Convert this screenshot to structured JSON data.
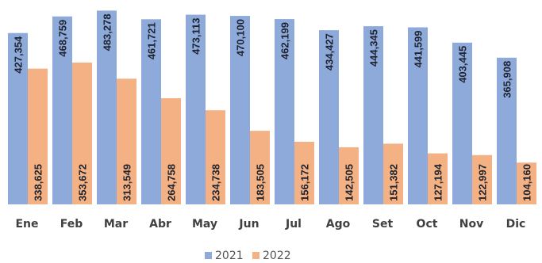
{
  "chart_data": {
    "type": "bar",
    "categories": [
      "Ene",
      "Feb",
      "Mar",
      "Abr",
      "May",
      "Jun",
      "Jul",
      "Ago",
      "Set",
      "Oct",
      "Nov",
      "Dic"
    ],
    "series": [
      {
        "name": "2021",
        "color": "#8eaadb",
        "values": [
          427354,
          468759,
          483278,
          461721,
          473113,
          470100,
          462199,
          434427,
          444345,
          441599,
          403445,
          365908
        ],
        "labels": [
          "427,354",
          "468,759",
          "483,278",
          "461,721",
          "473,113",
          "470,100",
          "462,199",
          "434,427",
          "444,345",
          "441,599",
          "403,445",
          "365,908"
        ]
      },
      {
        "name": "2022",
        "color": "#f4b183",
        "values": [
          338625,
          353672,
          313549,
          264758,
          234738,
          183505,
          156172,
          142505,
          151382,
          127194,
          122997,
          104160
        ],
        "labels": [
          "338,625",
          "353,672",
          "313,549",
          "264,758",
          "234,738",
          "183,505",
          "156,172",
          "142,505",
          "151,382",
          "127,194",
          "122,997",
          "104,160"
        ]
      }
    ],
    "ylim": [
      0,
      490000
    ],
    "grid": false,
    "legend_position": "bottom"
  }
}
